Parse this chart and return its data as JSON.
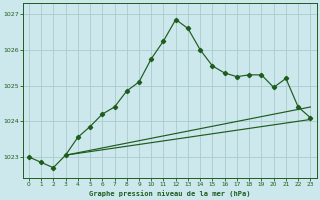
{
  "title": "Graphe pression niveau de la mer (hPa)",
  "background_color": "#cce8ec",
  "grid_color": "#aacccc",
  "line_color": "#1e5c1e",
  "xlim": [
    -0.5,
    23.5
  ],
  "ylim": [
    1022.4,
    1027.3
  ],
  "yticks": [
    1023,
    1024,
    1025,
    1026,
    1027
  ],
  "xticks": [
    0,
    1,
    2,
    3,
    4,
    5,
    6,
    7,
    8,
    9,
    10,
    11,
    12,
    13,
    14,
    15,
    16,
    17,
    18,
    19,
    20,
    21,
    22,
    23
  ],
  "line1_x": [
    0,
    1,
    2,
    3,
    4,
    5,
    6,
    7,
    8,
    9,
    10,
    11,
    12,
    13,
    14,
    15,
    16,
    17,
    18,
    19,
    20,
    21,
    22,
    23
  ],
  "line1_y": [
    1023.0,
    1022.85,
    1022.7,
    1023.05,
    1023.55,
    1023.85,
    1024.2,
    1024.4,
    1024.85,
    1025.1,
    1025.75,
    1026.25,
    1026.85,
    1026.6,
    1026.0,
    1025.55,
    1025.35,
    1025.25,
    1025.3,
    1025.3,
    1024.95,
    1025.2,
    1024.4,
    1024.1
  ],
  "line2_x": [
    3,
    23
  ],
  "line2_y": [
    1023.05,
    1024.05
  ],
  "line3_x": [
    3,
    23
  ],
  "line3_y": [
    1023.05,
    1024.4
  ]
}
